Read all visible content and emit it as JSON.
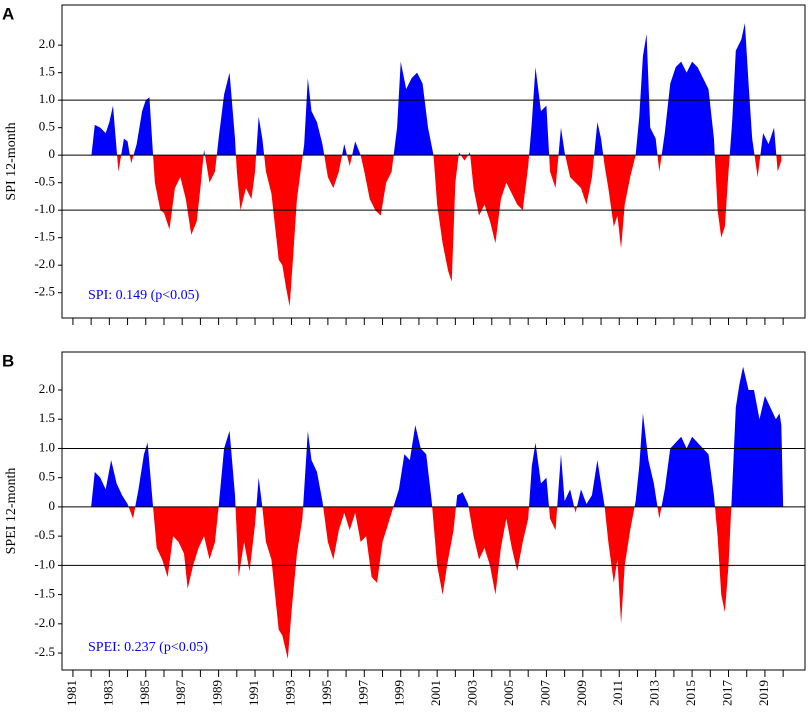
{
  "chart_data": [
    {
      "type": "area",
      "panel_label": "A",
      "ylabel": "SPI 12-month",
      "annotation": "SPI: 0.149 (p<0.05)",
      "annotation_color": "#0000ff",
      "positive_color": "#0000ff",
      "negative_color": "#ff0000",
      "xlim": [
        1980.4,
        2021.2
      ],
      "ylim": [
        -2.96,
        2.73
      ],
      "xticks": [
        1981,
        1983,
        1985,
        1987,
        1989,
        1991,
        1993,
        1995,
        1997,
        1999,
        2001,
        2003,
        2005,
        2007,
        2009,
        2011,
        2013,
        2015,
        2017,
        2019
      ],
      "xminor_ticks": [
        1982,
        1984,
        1986,
        1988,
        1990,
        1992,
        1994,
        1996,
        1998,
        2000,
        2002,
        2004,
        2006,
        2008,
        2010,
        2012,
        2014,
        2016,
        2018,
        2020
      ],
      "xtick_labels": false,
      "yticks": [
        {
          "value": 2,
          "label": "2.0"
        },
        1.5,
        {
          "value": 1,
          "label": "1.0"
        },
        0.5,
        0,
        -0.5,
        {
          "value": -1,
          "label": "-1.0"
        },
        -1.5,
        {
          "value": -2,
          "label": "-2.0"
        },
        -2.5
      ],
      "hlines": [
        1,
        0,
        -1
      ],
      "x": [
        1982.0,
        1982.2,
        1982.5,
        1982.8,
        1983.0,
        1983.2,
        1983.5,
        1983.8,
        1984.0,
        1984.2,
        1984.5,
        1984.8,
        1985.0,
        1985.2,
        1985.4,
        1985.5,
        1985.8,
        1986.0,
        1986.3,
        1986.6,
        1986.9,
        1987.2,
        1987.5,
        1987.8,
        1988.0,
        1988.2,
        1988.5,
        1988.8,
        1989.0,
        1989.3,
        1989.6,
        1989.9,
        1990.0,
        1990.2,
        1990.5,
        1990.8,
        1991.0,
        1991.2,
        1991.4,
        1991.6,
        1991.9,
        1992.1,
        1992.3,
        1992.5,
        1992.7,
        1992.9,
        1993.1,
        1993.3,
        1993.5,
        1993.7,
        1993.9,
        1994.1,
        1994.4,
        1994.7,
        1995.0,
        1995.3,
        1995.6,
        1995.9,
        1996.2,
        1996.5,
        1996.8,
        1997.0,
        1997.3,
        1997.6,
        1997.9,
        1998.2,
        1998.5,
        1998.8,
        1999.0,
        1999.3,
        1999.6,
        1999.9,
        2000.2,
        2000.5,
        2000.8,
        2001.0,
        2001.3,
        2001.6,
        2001.8,
        2002.0,
        2002.2,
        2002.5,
        2002.8,
        2003.0,
        2003.3,
        2003.6,
        2003.9,
        2004.2,
        2004.5,
        2004.8,
        2005.1,
        2005.4,
        2005.7,
        2006.0,
        2006.2,
        2006.4,
        2006.7,
        2007.0,
        2007.2,
        2007.5,
        2007.8,
        2008.0,
        2008.3,
        2008.6,
        2008.9,
        2009.2,
        2009.5,
        2009.8,
        2010.0,
        2010.2,
        2010.4,
        2010.7,
        2010.9,
        2011.1,
        2011.3,
        2011.6,
        2011.9,
        2012.1,
        2012.3,
        2012.5,
        2012.7,
        2013.0,
        2013.2,
        2013.5,
        2013.8,
        2014.1,
        2014.4,
        2014.7,
        2015.0,
        2015.3,
        2015.6,
        2015.9,
        2016.2,
        2016.4,
        2016.6,
        2016.8,
        2017.0,
        2017.2,
        2017.4,
        2017.7,
        2017.9,
        2018.1,
        2018.3,
        2018.6,
        2018.9,
        2019.2,
        2019.5,
        2019.7,
        2019.9
      ],
      "values": [
        -0.05,
        0.55,
        0.5,
        0.4,
        0.6,
        0.9,
        -0.3,
        0.3,
        0.25,
        -0.15,
        0.2,
        0.8,
        1.0,
        1.05,
        0.0,
        -0.5,
        -1.0,
        -1.05,
        -1.35,
        -0.6,
        -0.4,
        -0.8,
        -1.45,
        -1.2,
        -0.6,
        0.1,
        -0.5,
        -0.3,
        0.3,
        1.1,
        1.5,
        0.3,
        -0.3,
        -1.0,
        -0.6,
        -0.8,
        -0.3,
        0.7,
        0.3,
        -0.3,
        -0.7,
        -1.3,
        -1.9,
        -2.0,
        -2.4,
        -2.75,
        -1.8,
        -0.8,
        -0.3,
        0.2,
        1.4,
        0.8,
        0.6,
        0.2,
        -0.4,
        -0.6,
        -0.3,
        0.2,
        -0.2,
        0.25,
        0.0,
        -0.3,
        -0.8,
        -1.0,
        -1.1,
        -0.5,
        -0.3,
        0.5,
        1.7,
        1.2,
        1.4,
        1.5,
        1.3,
        0.5,
        0.0,
        -0.9,
        -1.6,
        -2.1,
        -2.3,
        -0.5,
        0.05,
        -0.1,
        0.05,
        -0.6,
        -1.1,
        -0.9,
        -1.2,
        -1.6,
        -0.8,
        -0.5,
        -0.7,
        -0.9,
        -1.0,
        -0.2,
        0.6,
        1.6,
        0.8,
        0.9,
        -0.3,
        -0.6,
        0.5,
        0.05,
        -0.4,
        -0.5,
        -0.6,
        -0.9,
        -0.4,
        0.6,
        0.3,
        -0.2,
        -0.6,
        -1.3,
        -1.1,
        -1.7,
        -0.9,
        -0.4,
        0.0,
        0.7,
        1.8,
        2.2,
        0.5,
        0.3,
        -0.3,
        0.4,
        1.3,
        1.6,
        1.7,
        1.5,
        1.7,
        1.6,
        1.4,
        1.2,
        0.3,
        -1.0,
        -1.5,
        -1.3,
        -0.3,
        0.6,
        1.9,
        2.1,
        2.4,
        1.3,
        0.3,
        -0.4,
        0.4,
        0.2,
        0.5,
        -0.3,
        -0.1
      ]
    },
    {
      "type": "area",
      "panel_label": "B",
      "ylabel": "SPEI 12-month",
      "annotation": "SPEI: 0.237 (p<0.05)",
      "annotation_color": "#0000ff",
      "positive_color": "#0000ff",
      "negative_color": "#ff0000",
      "xlim": [
        1980.4,
        2021.2
      ],
      "ylim": [
        -2.79,
        2.65
      ],
      "xticks": [
        1981,
        1983,
        1985,
        1987,
        1989,
        1991,
        1993,
        1995,
        1997,
        1999,
        2001,
        2003,
        2005,
        2007,
        2009,
        2011,
        2013,
        2015,
        2017,
        2019
      ],
      "xminor_ticks": [
        1982,
        1984,
        1986,
        1988,
        1990,
        1992,
        1994,
        1996,
        1998,
        2000,
        2002,
        2004,
        2006,
        2008,
        2010,
        2012,
        2014,
        2016,
        2018,
        2020
      ],
      "xtick_labels": true,
      "yticks": [
        {
          "value": 2,
          "label": "2.0"
        },
        1.5,
        {
          "value": 1,
          "label": "1.0"
        },
        0.5,
        0,
        -0.5,
        {
          "value": -1,
          "label": "-1.0"
        },
        -1.5,
        {
          "value": -2,
          "label": "-2.0"
        },
        -2.5
      ],
      "hlines": [
        1,
        0,
        -1
      ],
      "x": [
        1982.0,
        1982.2,
        1982.5,
        1982.8,
        1983.1,
        1983.4,
        1983.7,
        1984.0,
        1984.3,
        1984.6,
        1984.9,
        1985.1,
        1985.4,
        1985.6,
        1985.9,
        1986.2,
        1986.5,
        1986.8,
        1987.1,
        1987.3,
        1987.6,
        1987.9,
        1988.2,
        1988.5,
        1988.8,
        1989.0,
        1989.3,
        1989.6,
        1989.9,
        1990.1,
        1990.4,
        1990.7,
        1991.0,
        1991.2,
        1991.4,
        1991.6,
        1991.9,
        1992.1,
        1992.3,
        1992.5,
        1992.8,
        1993.0,
        1993.3,
        1993.6,
        1993.9,
        1994.1,
        1994.4,
        1994.7,
        1995.0,
        1995.3,
        1995.6,
        1995.9,
        1996.2,
        1996.5,
        1996.8,
        1997.1,
        1997.4,
        1997.7,
        1998.0,
        1998.3,
        1998.6,
        1998.9,
        1999.2,
        1999.5,
        1999.8,
        2000.1,
        2000.4,
        2000.7,
        2001.0,
        2001.3,
        2001.6,
        2001.9,
        2002.1,
        2002.4,
        2002.7,
        2003.0,
        2003.3,
        2003.6,
        2003.9,
        2004.2,
        2004.5,
        2004.8,
        2005.1,
        2005.4,
        2005.7,
        2006.0,
        2006.2,
        2006.4,
        2006.7,
        2007.0,
        2007.2,
        2007.5,
        2007.8,
        2008.0,
        2008.3,
        2008.6,
        2008.9,
        2009.2,
        2009.5,
        2009.8,
        2010.0,
        2010.2,
        2010.4,
        2010.7,
        2010.9,
        2011.1,
        2011.3,
        2011.6,
        2011.9,
        2012.1,
        2012.3,
        2012.6,
        2012.9,
        2013.2,
        2013.5,
        2013.8,
        2014.1,
        2014.4,
        2014.7,
        2015.0,
        2015.3,
        2015.6,
        2015.9,
        2016.2,
        2016.4,
        2016.6,
        2016.8,
        2017.0,
        2017.2,
        2017.4,
        2017.6,
        2017.8,
        2018.1,
        2018.4,
        2018.7,
        2019.0,
        2019.3,
        2019.6,
        2019.8,
        2019.9,
        2020.0
      ],
      "values": [
        0.0,
        0.6,
        0.5,
        0.3,
        0.8,
        0.4,
        0.2,
        0.05,
        -0.2,
        0.3,
        0.9,
        1.1,
        0.0,
        -0.7,
        -0.9,
        -1.2,
        -0.5,
        -0.6,
        -0.8,
        -1.4,
        -1.0,
        -0.7,
        -0.5,
        -0.9,
        -0.6,
        0.0,
        1.0,
        1.3,
        0.2,
        -1.2,
        -0.6,
        -1.1,
        -0.3,
        0.5,
        0.0,
        -0.6,
        -0.9,
        -1.5,
        -2.1,
        -2.2,
        -2.6,
        -1.8,
        -0.8,
        -0.2,
        1.3,
        0.8,
        0.6,
        0.1,
        -0.6,
        -0.9,
        -0.4,
        -0.1,
        -0.4,
        -0.1,
        -0.6,
        -0.5,
        -1.2,
        -1.3,
        -0.6,
        -0.3,
        0.0,
        0.3,
        0.9,
        0.8,
        1.4,
        1.0,
        0.9,
        0.1,
        -1.0,
        -1.5,
        -0.9,
        -0.4,
        0.2,
        0.25,
        0.05,
        -0.5,
        -0.9,
        -0.7,
        -1.0,
        -1.5,
        -0.7,
        -0.2,
        -0.7,
        -1.1,
        -0.6,
        -0.2,
        0.7,
        1.1,
        0.4,
        0.5,
        -0.2,
        -0.4,
        0.9,
        0.1,
        0.3,
        -0.1,
        0.3,
        0.05,
        0.2,
        0.8,
        0.4,
        0.0,
        -0.6,
        -1.3,
        -0.9,
        -2.0,
        -1.0,
        -0.4,
        0.1,
        0.7,
        1.6,
        0.8,
        0.4,
        -0.2,
        0.3,
        1.0,
        1.1,
        1.2,
        1.0,
        1.2,
        1.1,
        1.0,
        0.9,
        0.2,
        -0.5,
        -1.5,
        -1.8,
        -1.0,
        0.3,
        1.7,
        2.1,
        2.4,
        2.0,
        2.0,
        1.5,
        1.9,
        1.7,
        1.5,
        1.6,
        1.4,
        0.0
      ]
    }
  ]
}
